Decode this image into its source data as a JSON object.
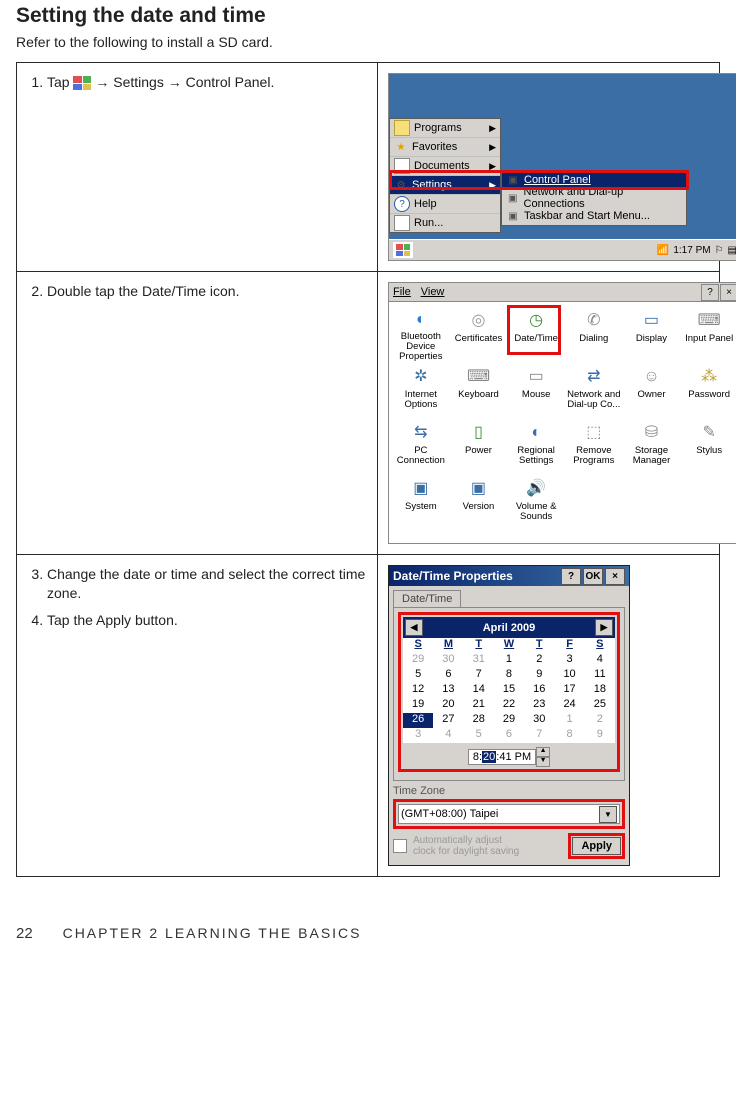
{
  "page": {
    "heading": "Setting the date and time",
    "subtitle": "Refer to the following to install a SD card.",
    "footer_page": "22",
    "footer_text": "CHAPTER 2 LEARNING THE BASICS"
  },
  "steps": {
    "s1_prefix": "Tap ",
    "s1_suffix": " → Settings → Control Panel.",
    "s2": "Double tap the Date/Time icon.",
    "s3": "Change the date or time and select the correct time zone.",
    "s4": "Tap the Apply button."
  },
  "highlight_color": "#e01010",
  "scr1": {
    "bg": "#3a6ea5",
    "menu_items": [
      {
        "icon": "folder",
        "label": "Programs",
        "arrow": true
      },
      {
        "icon": "star",
        "label": "Favorites",
        "arrow": true
      },
      {
        "icon": "doc",
        "label": "Documents",
        "arrow": true
      },
      {
        "icon": "gear",
        "label": "Settings",
        "arrow": true,
        "sel": true
      },
      {
        "icon": "help",
        "label": "Help",
        "arrow": false
      },
      {
        "icon": "run",
        "label": "Run...",
        "arrow": false
      }
    ],
    "submenu_items": [
      {
        "label": "Control Panel",
        "sel": true
      },
      {
        "label": "Network and Dial-up Connections"
      },
      {
        "label": "Taskbar and Start Menu..."
      }
    ],
    "clock": "1:17 PM"
  },
  "scr2": {
    "file": "File",
    "view": "View",
    "items": [
      {
        "label": "Bluetooth Device Properties",
        "glyph": "◐",
        "color": "#2a7ad4"
      },
      {
        "label": "Certificates",
        "glyph": "◎",
        "color": "#999"
      },
      {
        "label": "Date/Time",
        "glyph": "◷",
        "color": "#3a8a3a"
      },
      {
        "label": "Dialing",
        "glyph": "✆",
        "color": "#888"
      },
      {
        "label": "Display",
        "glyph": "▭",
        "color": "#3a6ea5"
      },
      {
        "label": "Input Panel",
        "glyph": "⌨",
        "color": "#888"
      },
      {
        "label": "Internet Options",
        "glyph": "✲",
        "color": "#3a6ea5"
      },
      {
        "label": "Keyboard",
        "glyph": "⌨",
        "color": "#888"
      },
      {
        "label": "Mouse",
        "glyph": "▭",
        "color": "#888"
      },
      {
        "label": "Network and Dial-up Co...",
        "glyph": "⇄",
        "color": "#3a6ea5"
      },
      {
        "label": "Owner",
        "glyph": "☺",
        "color": "#888"
      },
      {
        "label": "Password",
        "glyph": "⁂",
        "color": "#c0a030"
      },
      {
        "label": "PC Connection",
        "glyph": "⇆",
        "color": "#3a6ea5"
      },
      {
        "label": "Power",
        "glyph": "▯",
        "color": "#3a8a3a"
      },
      {
        "label": "Regional Settings",
        "glyph": "◐",
        "color": "#3a6ea5"
      },
      {
        "label": "Remove Programs",
        "glyph": "⬚",
        "color": "#888"
      },
      {
        "label": "Storage Manager",
        "glyph": "⛁",
        "color": "#888"
      },
      {
        "label": "Stylus",
        "glyph": "✎",
        "color": "#888"
      },
      {
        "label": "System",
        "glyph": "▣",
        "color": "#3a6ea5"
      },
      {
        "label": "Version",
        "glyph": "▣",
        "color": "#3a6ea5"
      },
      {
        "label": "Volume & Sounds",
        "glyph": "🔊",
        "color": "#c0a030"
      }
    ]
  },
  "scr3": {
    "title": "Date/Time Properties",
    "ok": "OK",
    "tab": "Date/Time",
    "month": "April 2009",
    "dayheaders": [
      "S",
      "M",
      "T",
      "W",
      "T",
      "F",
      "S"
    ],
    "weeks": [
      [
        {
          "n": "29",
          "g": true
        },
        {
          "n": "30",
          "g": true
        },
        {
          "n": "31",
          "g": true
        },
        {
          "n": "1"
        },
        {
          "n": "2"
        },
        {
          "n": "3"
        },
        {
          "n": "4"
        }
      ],
      [
        {
          "n": "5"
        },
        {
          "n": "6"
        },
        {
          "n": "7"
        },
        {
          "n": "8"
        },
        {
          "n": "9"
        },
        {
          "n": "10"
        },
        {
          "n": "11"
        }
      ],
      [
        {
          "n": "12"
        },
        {
          "n": "13"
        },
        {
          "n": "14"
        },
        {
          "n": "15"
        },
        {
          "n": "16"
        },
        {
          "n": "17"
        },
        {
          "n": "18"
        }
      ],
      [
        {
          "n": "19"
        },
        {
          "n": "20"
        },
        {
          "n": "21"
        },
        {
          "n": "22"
        },
        {
          "n": "23"
        },
        {
          "n": "24"
        },
        {
          "n": "25"
        }
      ],
      [
        {
          "n": "26",
          "sel": true
        },
        {
          "n": "27"
        },
        {
          "n": "28"
        },
        {
          "n": "29"
        },
        {
          "n": "30"
        },
        {
          "n": "1",
          "g": true
        },
        {
          "n": "2",
          "g": true
        }
      ],
      [
        {
          "n": "3",
          "g": true
        },
        {
          "n": "4",
          "g": true
        },
        {
          "n": "5",
          "g": true
        },
        {
          "n": "6",
          "g": true
        },
        {
          "n": "7",
          "g": true
        },
        {
          "n": "8",
          "g": true
        },
        {
          "n": "9",
          "g": true
        }
      ]
    ],
    "time_pre": "8:",
    "time_sel": "20",
    "time_post": ":41 PM",
    "tz_label": "Time Zone",
    "tz_value": "(GMT+08:00) Taipei",
    "auto_l1": "Automatically adjust",
    "auto_l2": "clock for daylight saving",
    "apply": "Apply"
  }
}
